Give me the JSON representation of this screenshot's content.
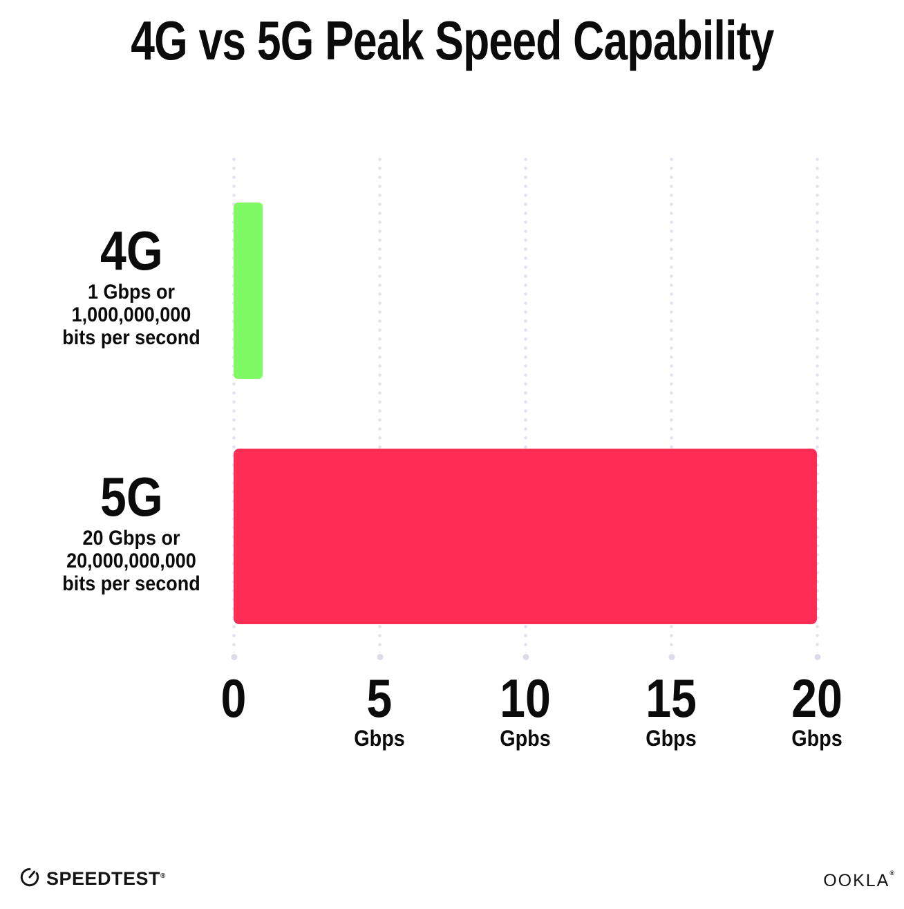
{
  "title": "4G vs 5G Peak Speed Capability",
  "chart_data": {
    "type": "bar",
    "orientation": "horizontal",
    "title": "4G vs 5G Peak Speed Capability",
    "categories": [
      "4G",
      "5G"
    ],
    "values": [
      1,
      20
    ],
    "value_unit": "Gbps",
    "xlim": [
      0,
      20
    ],
    "grid": "dotted vertical gridlines at 0, 5, 10, 15, 20",
    "legend": "none",
    "series_labels": [
      {
        "name": "4G",
        "sublines": [
          "1 Gbps or",
          "1,000,000,000",
          "bits per second"
        ],
        "color": "#80fa64"
      },
      {
        "name": "5G",
        "sublines": [
          "20 Gbps or",
          "20,000,000,000",
          "bits per second"
        ],
        "color": "#ff2d55"
      }
    ],
    "x_ticks": [
      {
        "label": "0",
        "unit": ""
      },
      {
        "label": "5",
        "unit": "Gbps"
      },
      {
        "label": "10",
        "unit": "Gpbs"
      },
      {
        "label": "15",
        "unit": "Gbps"
      },
      {
        "label": "20",
        "unit": "Gbps"
      }
    ]
  },
  "footer": {
    "speedtest": "SPEEDTEST",
    "speedtest_mark": "®",
    "ookla": "OOKLA",
    "ookla_mark": "®"
  },
  "colors": {
    "background": "#ffffff",
    "text": "#0b0b0b",
    "bar_4g": "#80fa64",
    "bar_5g": "#ff2d55",
    "grid_dot": "#e2e2ee",
    "grid_end_dot": "#dcdce8"
  }
}
